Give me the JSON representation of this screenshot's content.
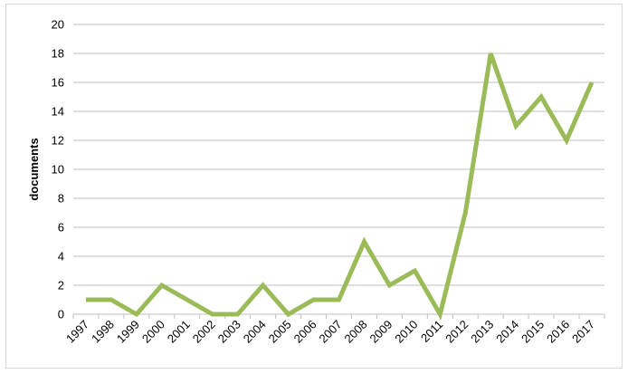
{
  "chart_data": {
    "type": "line",
    "title": "",
    "xlabel": "",
    "ylabel": "documents",
    "ylim": [
      0,
      20
    ],
    "yticks": [
      "0",
      "2",
      "4",
      "6",
      "8",
      "10",
      "12",
      "14",
      "16",
      "18",
      "20"
    ],
    "x": [
      "1997",
      "1998",
      "1999",
      "2000",
      "2001",
      "2002",
      "2003",
      "2004",
      "2005",
      "2006",
      "2007",
      "2008",
      "2009",
      "2010",
      "2011",
      "2012",
      "2013",
      "2014",
      "2015",
      "2016",
      "2017"
    ],
    "series": [
      {
        "values": [
          1,
          1,
          0,
          2,
          1,
          0,
          0,
          2,
          0,
          1,
          1,
          5,
          2,
          3,
          0,
          7,
          18,
          13,
          15,
          12,
          16
        ]
      }
    ],
    "grid": true,
    "legend": "none",
    "colors": {
      "line": "#9bbb59",
      "grid": "#bfbfbf",
      "axis": "#bfbfbf",
      "frame": "#d9d9d9"
    }
  }
}
